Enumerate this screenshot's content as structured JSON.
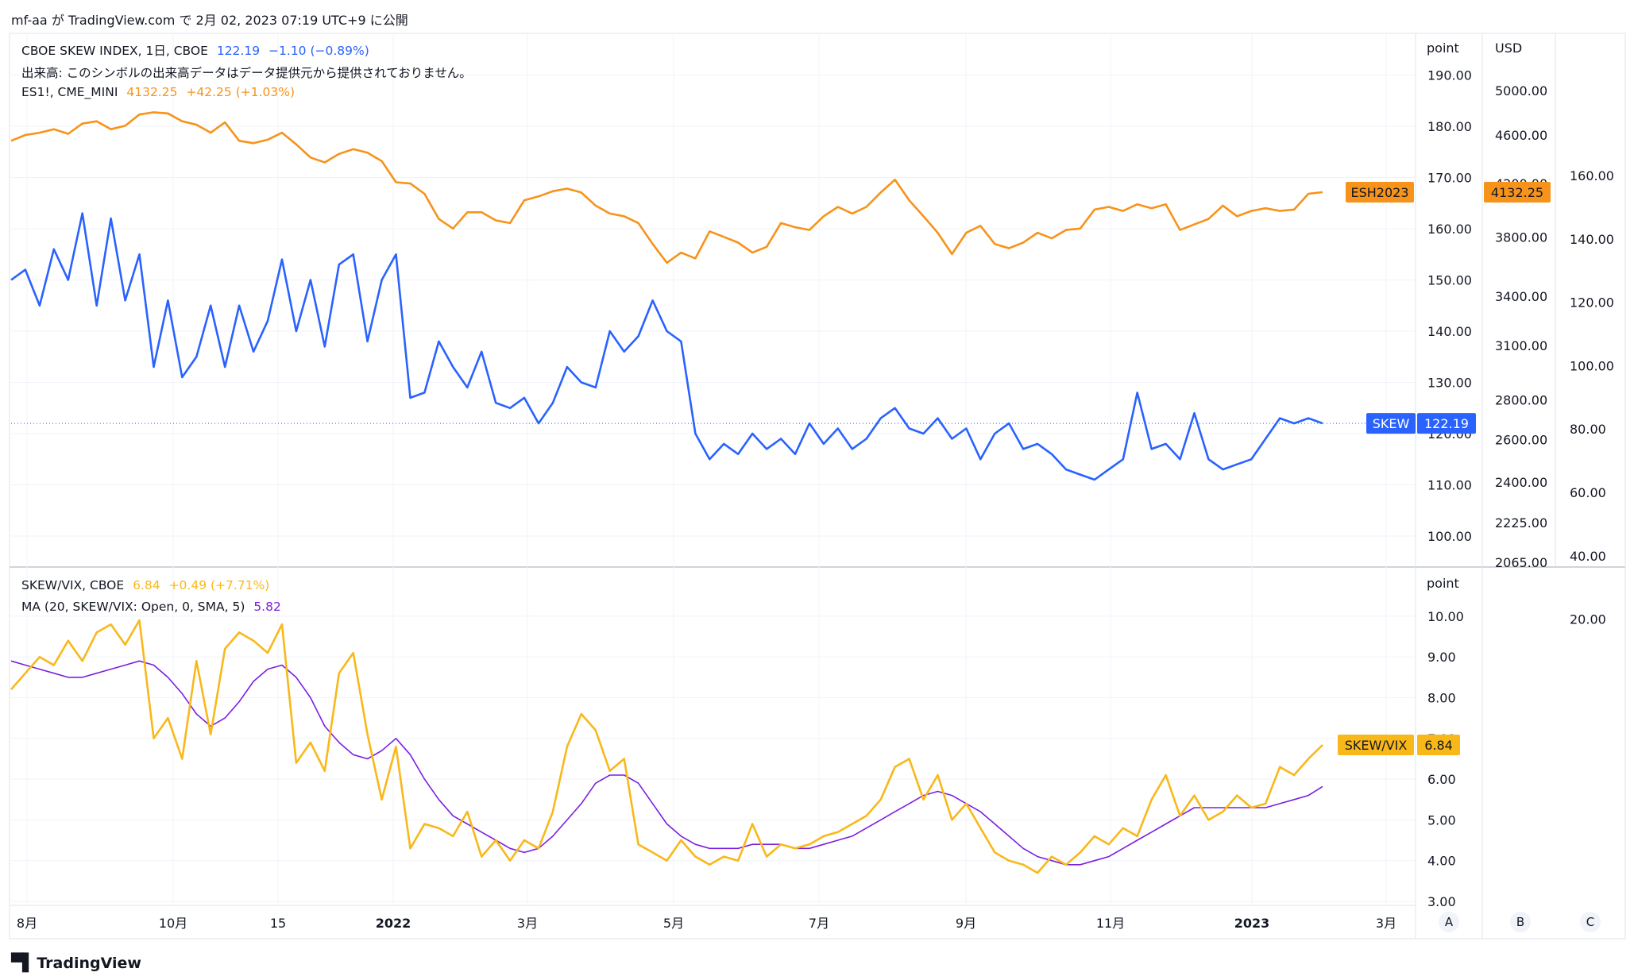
{
  "header": {
    "user": "mf-aa",
    "text": "mf-aa が TradingView.com で 2月 02, 2023 07:19 UTC+9 に公開"
  },
  "legend_top": {
    "skew": {
      "name": "CBOE SKEW INDEX, 1日, CBOE",
      "value": "122.19",
      "change": "−1.10 (−0.89%)"
    },
    "volume_note": "出来高: このシンボルの出来高データはデータ提供元から提供されておりません。",
    "es": {
      "name": "ES1!, CME_MINI",
      "value": "4132.25",
      "change": "+42.25 (+1.03%)"
    }
  },
  "legend_bottom": {
    "ratio": {
      "name": "SKEW/VIX, CBOE",
      "value": "6.84",
      "change": "+0.49 (+7.71%)"
    },
    "ma": {
      "name": "MA (20, SKEW/VIX: Open, 0, SMA, 5)",
      "value": "5.82"
    }
  },
  "axis_titles": {
    "point_top": "point",
    "usd": "USD",
    "point_bottom": "point"
  },
  "axis_buttons": [
    "A",
    "B",
    "C"
  ],
  "footer": {
    "brand": "TradingView"
  },
  "colors": {
    "skew": "#2962ff",
    "es": "#f7931a",
    "ratio": "#f9b81a",
    "ma": "#7b1fe0",
    "grid": "#f0f3fa"
  },
  "chart_data": [
    {
      "type": "line",
      "title": "CBOE SKEW INDEX, 1日, CBOE",
      "series": [
        {
          "name": "SKEW",
          "axis": "point",
          "values": [
            150,
            152,
            145,
            156,
            150,
            163,
            145,
            162,
            146,
            155,
            133,
            146,
            131,
            135,
            145,
            133,
            145,
            136,
            142,
            154,
            140,
            150,
            137,
            153,
            155,
            138,
            150,
            155,
            127,
            128,
            138,
            133,
            129,
            136,
            126,
            125,
            127,
            122,
            126,
            133,
            130,
            129,
            140,
            136,
            139,
            146,
            140,
            138,
            120,
            115,
            118,
            116,
            120,
            117,
            119,
            116,
            122,
            118,
            121,
            117,
            119,
            123,
            125,
            121,
            120,
            123,
            119,
            121,
            115,
            120,
            122,
            117,
            118,
            116,
            113,
            112,
            111,
            113,
            115,
            128,
            117,
            118,
            115,
            124,
            115,
            113,
            114,
            115,
            119,
            123,
            122,
            123,
            122
          ]
        },
        {
          "name": "ESH2023",
          "axis": "usd",
          "values": [
            4550,
            4600,
            4620,
            4650,
            4610,
            4700,
            4720,
            4650,
            4680,
            4780,
            4800,
            4790,
            4720,
            4690,
            4620,
            4710,
            4550,
            4530,
            4560,
            4620,
            4520,
            4410,
            4370,
            4440,
            4480,
            4450,
            4380,
            4210,
            4200,
            4120,
            3930,
            3860,
            3980,
            3980,
            3920,
            3900,
            4070,
            4100,
            4140,
            4160,
            4130,
            4030,
            3970,
            3950,
            3900,
            3750,
            3620,
            3690,
            3650,
            3840,
            3800,
            3760,
            3690,
            3730,
            3900,
            3870,
            3850,
            3950,
            4020,
            3970,
            4020,
            4130,
            4230,
            4070,
            3950,
            3830,
            3680,
            3830,
            3880,
            3750,
            3720,
            3760,
            3830,
            3790,
            3850,
            3860,
            4000,
            4020,
            3990,
            4040,
            4010,
            4040,
            3850,
            3890,
            3930,
            4030,
            3950,
            3990,
            4010,
            3990,
            4000,
            4120,
            4132.25
          ]
        }
      ],
      "axes": {
        "point": {
          "title": "point",
          "ticks": [
            100,
            110,
            120,
            130,
            140,
            150,
            160,
            170,
            180,
            190
          ]
        },
        "usd": {
          "title": "USD",
          "ticks": [
            2065,
            2225,
            2400,
            2600,
            2800,
            3100,
            3400,
            3800,
            4200,
            4600,
            5000
          ],
          "scale": "log"
        },
        "third": {
          "ticks": [
            20,
            40,
            60,
            80,
            100,
            120,
            140,
            160
          ]
        }
      },
      "last_labels": [
        {
          "text": "ESH2023",
          "value": "4132.25"
        },
        {
          "text": "SKEW",
          "value": "122.19"
        }
      ]
    },
    {
      "type": "line",
      "title": "SKEW/VIX, CBOE",
      "series": [
        {
          "name": "SKEW/VIX",
          "values": [
            8.2,
            8.6,
            9.0,
            8.8,
            9.4,
            8.9,
            9.6,
            9.8,
            9.3,
            9.9,
            7.0,
            7.5,
            6.5,
            8.9,
            7.1,
            9.2,
            9.6,
            9.4,
            9.1,
            9.8,
            6.4,
            6.9,
            6.2,
            8.6,
            9.1,
            7.1,
            5.5,
            6.8,
            4.3,
            4.9,
            4.8,
            4.6,
            5.2,
            4.1,
            4.5,
            4.0,
            4.5,
            4.3,
            5.2,
            6.8,
            7.6,
            7.2,
            6.2,
            6.5,
            4.4,
            4.2,
            4.0,
            4.5,
            4.1,
            3.9,
            4.1,
            4.0,
            4.9,
            4.1,
            4.4,
            4.3,
            4.4,
            4.6,
            4.7,
            4.9,
            5.1,
            5.5,
            6.3,
            6.5,
            5.5,
            6.1,
            5.0,
            5.4,
            4.8,
            4.2,
            4.0,
            3.9,
            3.7,
            4.1,
            3.9,
            4.2,
            4.6,
            4.4,
            4.8,
            4.6,
            5.5,
            6.1,
            5.1,
            5.6,
            5.0,
            5.2,
            5.6,
            5.3,
            5.4,
            6.3,
            6.1,
            6.5,
            6.84
          ]
        },
        {
          "name": "MA (20, SKEW/VIX: Open, 0, SMA, 5)",
          "values": [
            8.9,
            8.8,
            8.7,
            8.6,
            8.5,
            8.5,
            8.6,
            8.7,
            8.8,
            8.9,
            8.8,
            8.5,
            8.1,
            7.6,
            7.3,
            7.5,
            7.9,
            8.4,
            8.7,
            8.8,
            8.5,
            8.0,
            7.3,
            6.9,
            6.6,
            6.5,
            6.7,
            7.0,
            6.6,
            6.0,
            5.5,
            5.1,
            4.9,
            4.7,
            4.5,
            4.3,
            4.2,
            4.3,
            4.6,
            5.0,
            5.4,
            5.9,
            6.1,
            6.1,
            5.9,
            5.4,
            4.9,
            4.6,
            4.4,
            4.3,
            4.3,
            4.3,
            4.4,
            4.4,
            4.4,
            4.3,
            4.3,
            4.4,
            4.5,
            4.6,
            4.8,
            5.0,
            5.2,
            5.4,
            5.6,
            5.7,
            5.6,
            5.4,
            5.2,
            4.9,
            4.6,
            4.3,
            4.1,
            4.0,
            3.9,
            3.9,
            4.0,
            4.1,
            4.3,
            4.5,
            4.7,
            4.9,
            5.1,
            5.3,
            5.3,
            5.3,
            5.3,
            5.3,
            5.3,
            5.4,
            5.5,
            5.6,
            5.82
          ]
        }
      ],
      "axes": {
        "point": {
          "title": "point",
          "ticks": [
            3.0,
            4.0,
            5.0,
            6.0,
            7.0,
            8.0,
            9.0,
            10.0
          ]
        }
      },
      "last_labels": [
        {
          "text": "SKEW/VIX",
          "value": "6.84"
        }
      ]
    }
  ],
  "x_axis": {
    "ticks": [
      "8月",
      "10月",
      "15",
      "2022",
      "3月",
      "5月",
      "7月",
      "9月",
      "11月",
      "2023",
      "3月"
    ]
  }
}
